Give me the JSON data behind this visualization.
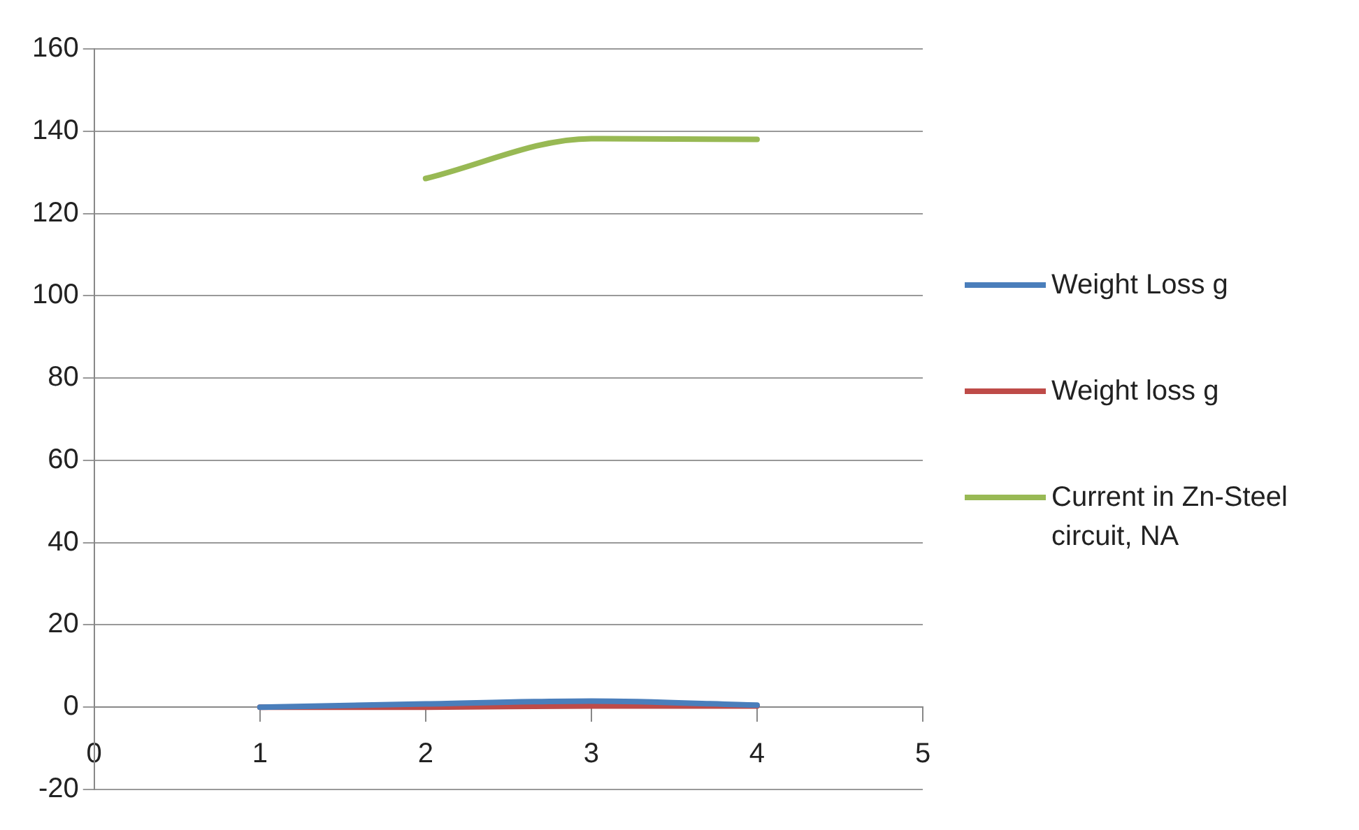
{
  "chart_data": {
    "type": "line",
    "x": [
      1,
      2,
      3,
      4
    ],
    "xlim": [
      0,
      5
    ],
    "xticks": [
      0,
      1,
      2,
      3,
      4,
      5
    ],
    "ylim": [
      -20,
      160
    ],
    "yticks": [
      -20,
      0,
      20,
      40,
      60,
      80,
      100,
      120,
      140,
      160
    ],
    "grid": "y",
    "legend": "right",
    "marker": "none",
    "line_style": "solid",
    "series": [
      {
        "name": "Weight Loss g",
        "color": "#4a7ebb",
        "values": [
          0,
          0.8,
          1.5,
          0.5
        ]
      },
      {
        "name": "Weight loss g",
        "color": "#be4b48",
        "values": [
          0,
          0,
          0.3,
          0.3
        ]
      },
      {
        "name": "Current in Zn-Steel circuit, NA",
        "color": "#98b954",
        "values": [
          null,
          128.5,
          138.2,
          138
        ]
      }
    ]
  }
}
